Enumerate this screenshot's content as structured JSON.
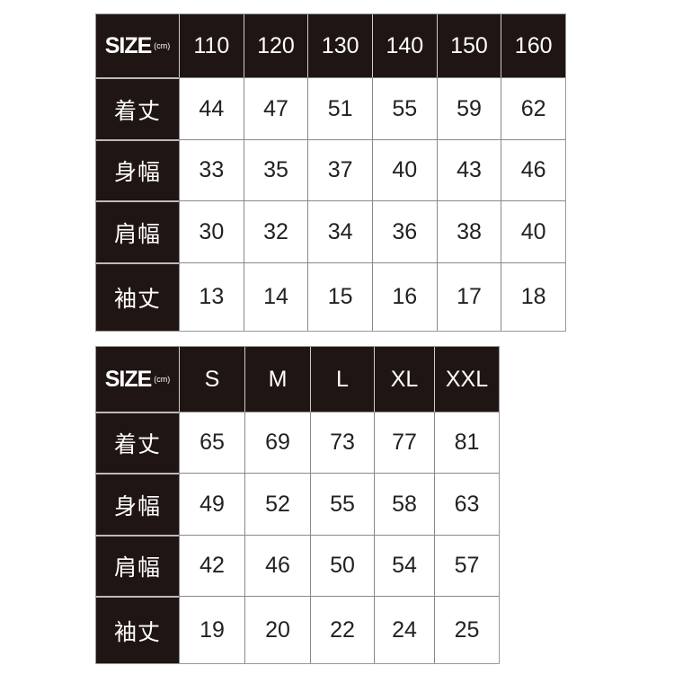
{
  "kids_table": {
    "size_label": "SIZE",
    "unit": "(cm)",
    "columns": [
      "110",
      "120",
      "130",
      "140",
      "150",
      "160"
    ],
    "rows": [
      {
        "label": "着丈",
        "values": [
          "44",
          "47",
          "51",
          "55",
          "59",
          "62"
        ]
      },
      {
        "label": "身幅",
        "values": [
          "33",
          "35",
          "37",
          "40",
          "43",
          "46"
        ]
      },
      {
        "label": "肩幅",
        "values": [
          "30",
          "32",
          "34",
          "36",
          "38",
          "40"
        ]
      },
      {
        "label": "袖丈",
        "values": [
          "13",
          "14",
          "15",
          "16",
          "17",
          "18"
        ]
      }
    ]
  },
  "adult_table": {
    "size_label": "SIZE",
    "unit": "(cm)",
    "columns": [
      "S",
      "M",
      "L",
      "XL",
      "XXL"
    ],
    "rows": [
      {
        "label": "着丈",
        "values": [
          "65",
          "69",
          "73",
          "77",
          "81"
        ]
      },
      {
        "label": "身幅",
        "values": [
          "49",
          "52",
          "55",
          "58",
          "63"
        ]
      },
      {
        "label": "肩幅",
        "values": [
          "42",
          "46",
          "50",
          "54",
          "57"
        ]
      },
      {
        "label": "袖丈",
        "values": [
          "19",
          "20",
          "22",
          "24",
          "25"
        ]
      }
    ]
  },
  "colors": {
    "header_bg": "#1f1512",
    "cell_bg": "#ffffff",
    "text_dark": "#222222"
  }
}
